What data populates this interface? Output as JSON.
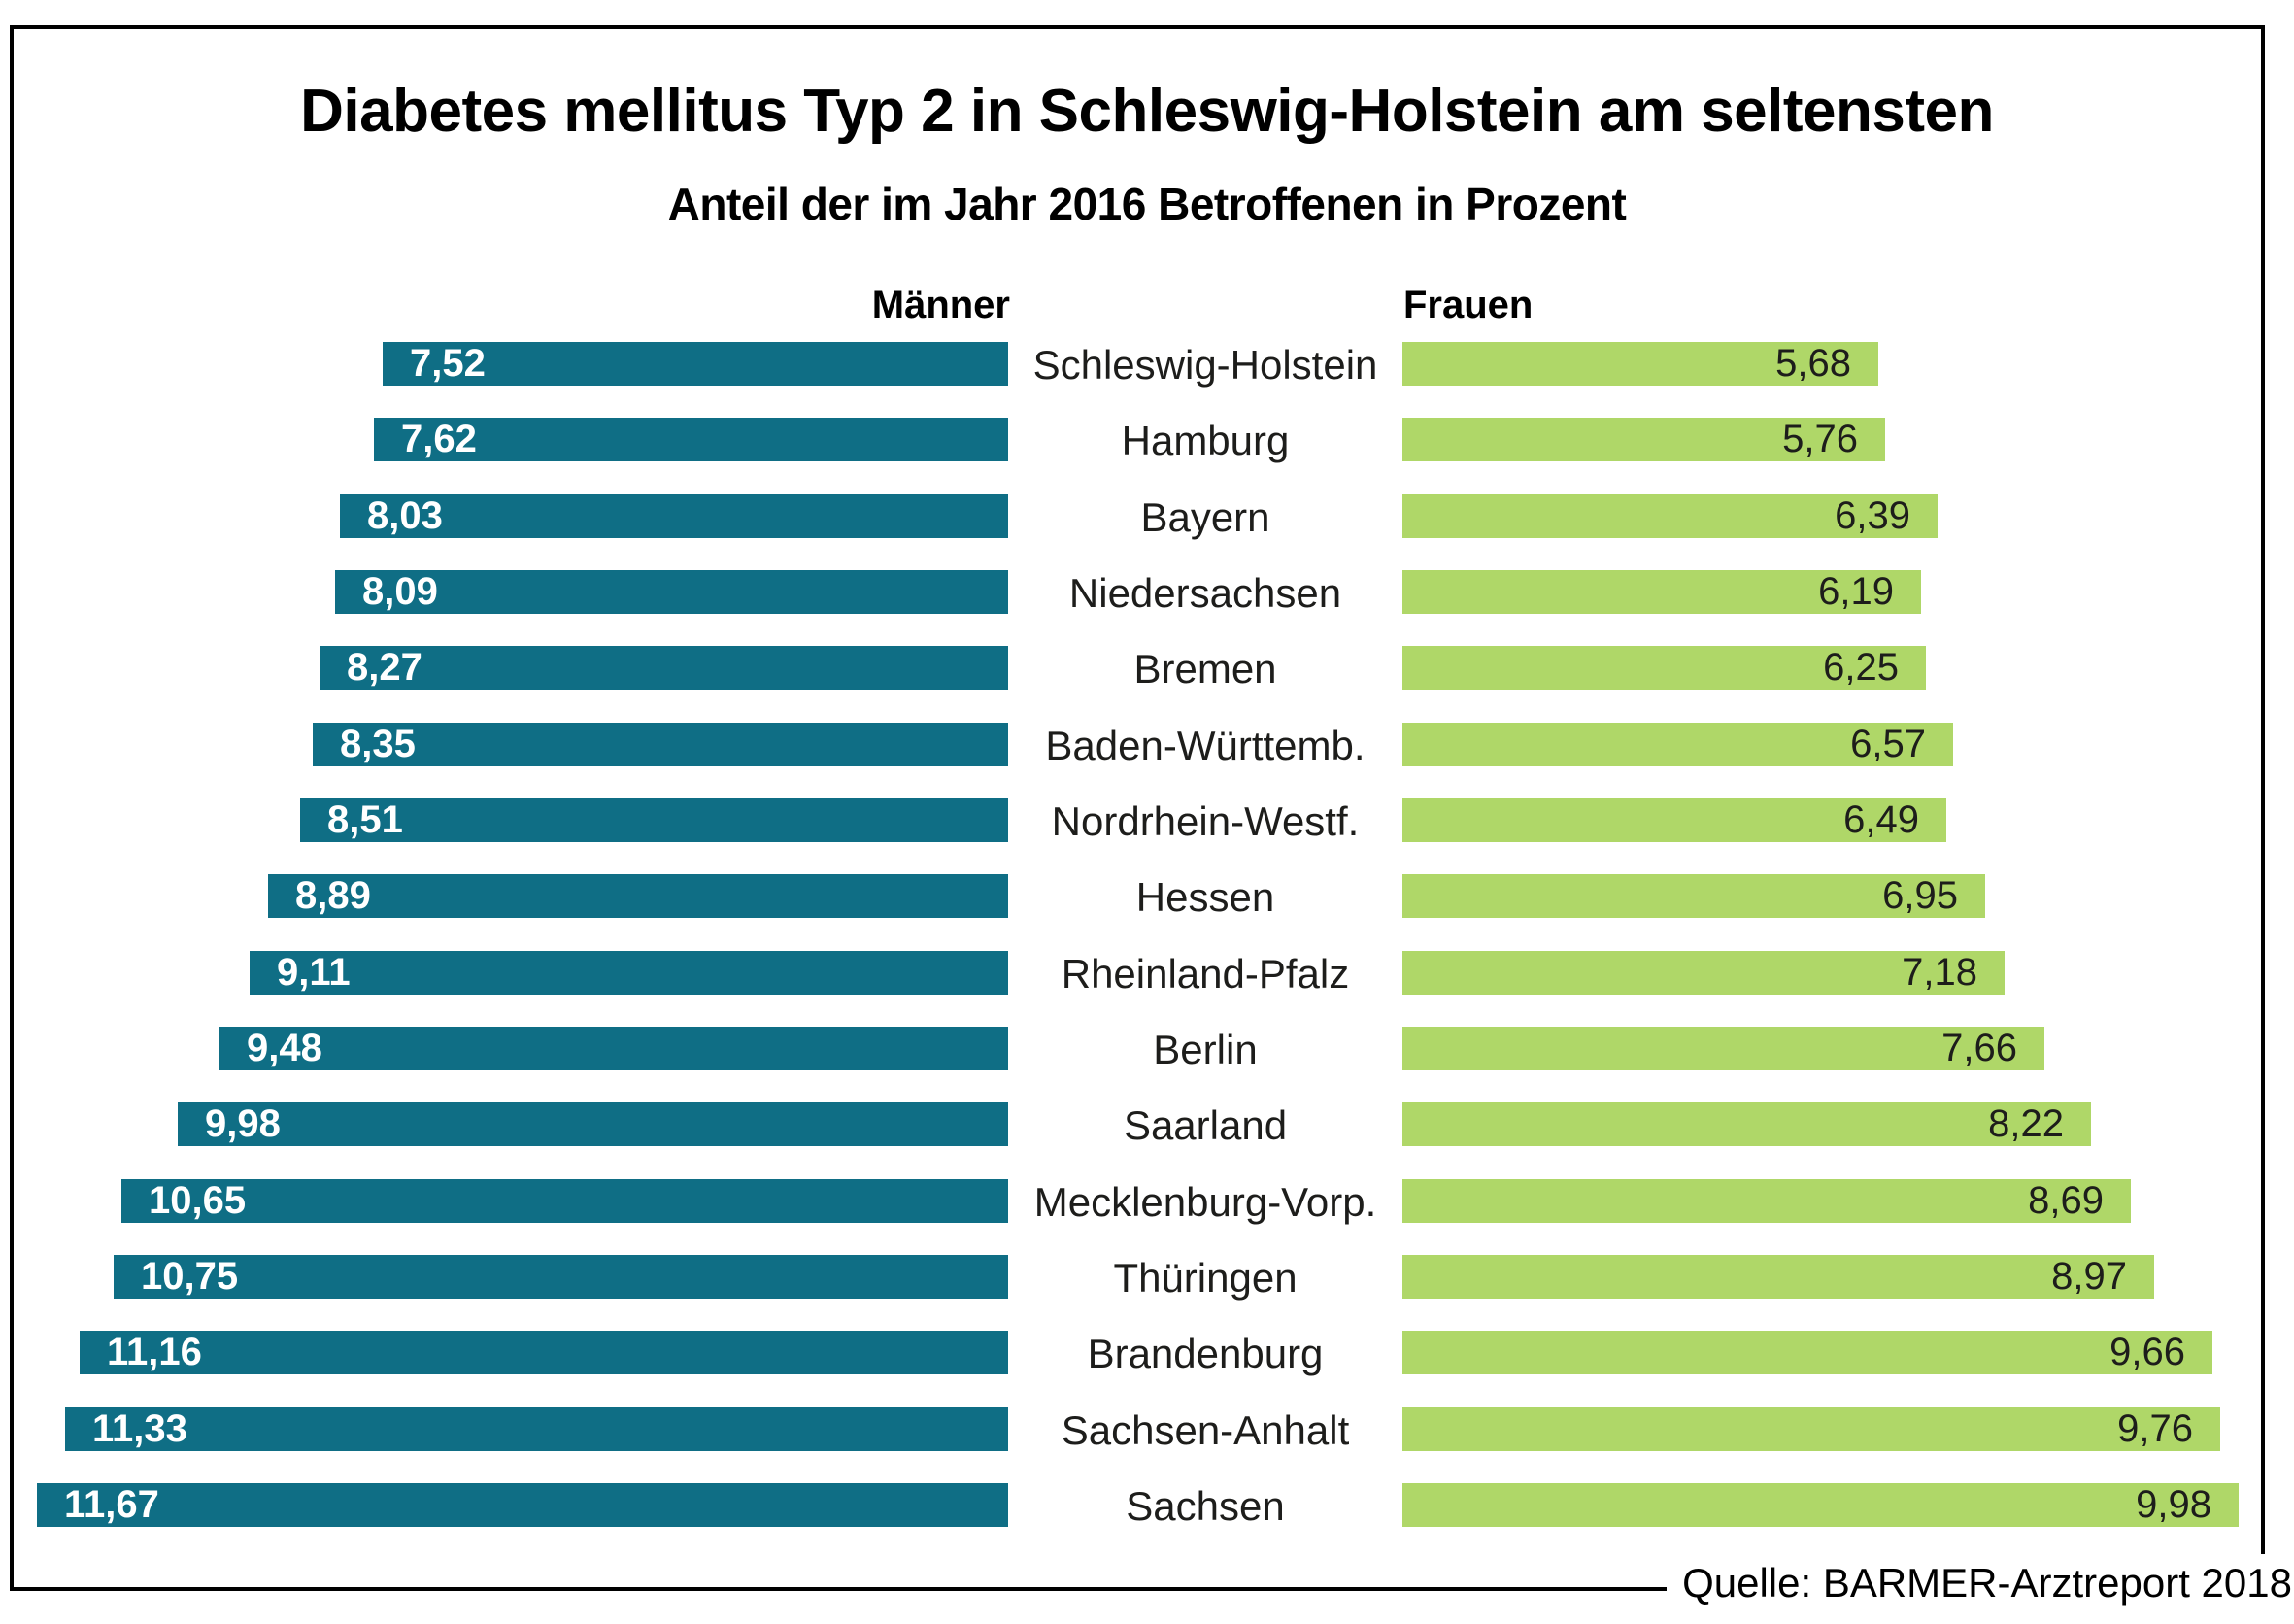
{
  "chart_data": {
    "type": "bar",
    "orientation": "diverging-horizontal",
    "title": "Diabetes mellitus Typ 2 in Schleswig-Holstein am seltensten",
    "subtitle": "Anteil der im Jahr 2016 Betroffenen in Prozent",
    "categories": [
      "Schleswig-Holstein",
      "Hamburg",
      "Bayern",
      "Niedersachsen",
      "Bremen",
      "Baden-Württemb.",
      "Nordrhein-Westf.",
      "Hessen",
      "Rheinland-Pfalz",
      "Berlin",
      "Saarland",
      "Mecklenburg-Vorp.",
      "Thüringen",
      "Brandenburg",
      "Sachsen-Anhalt",
      "Sachsen"
    ],
    "series": [
      {
        "name": "Männer",
        "side": "left",
        "color": "#0f6e85",
        "label_color": "#ffffff",
        "values": [
          7.52,
          7.62,
          8.03,
          8.09,
          8.27,
          8.35,
          8.51,
          8.89,
          9.11,
          9.48,
          9.98,
          10.65,
          10.75,
          11.16,
          11.33,
          11.67
        ],
        "labels": [
          "7,52",
          "7,62",
          "8,03",
          "8,09",
          "8,27",
          "8,35",
          "8,51",
          "8,89",
          "9,11",
          "9,48",
          "9,98",
          "10,65",
          "10,75",
          "11,16",
          "11,33",
          "11,67"
        ]
      },
      {
        "name": "Frauen",
        "side": "right",
        "color": "#afd768",
        "label_color": "#1d1d1b",
        "values": [
          5.68,
          5.76,
          6.39,
          6.19,
          6.25,
          6.57,
          6.49,
          6.95,
          7.18,
          7.66,
          8.22,
          8.69,
          8.97,
          9.66,
          9.76,
          9.98
        ],
        "labels": [
          "5,68",
          "5,76",
          "6,39",
          "6,19",
          "6,25",
          "6,57",
          "6,49",
          "6,95",
          "7,18",
          "7,66",
          "8,22",
          "8,69",
          "8,97",
          "9,66",
          "9,76",
          "9,98"
        ]
      }
    ],
    "value_range": [
      0,
      11.67
    ],
    "grid": false,
    "legend_position": "column-headers-above-chart",
    "source": "Quelle: BARMER-Arztreport 2018"
  }
}
